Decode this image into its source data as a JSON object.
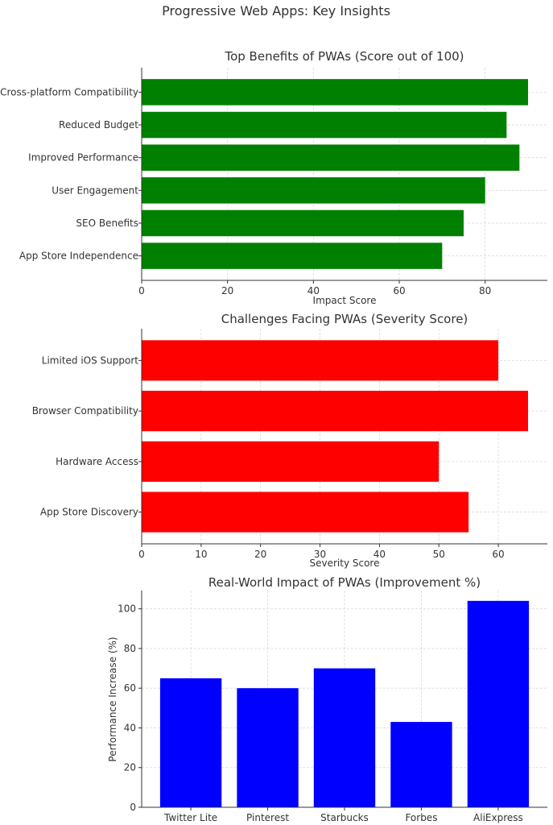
{
  "figure": {
    "title": "Progressive Web Apps: Key Insights"
  },
  "chart_data": [
    {
      "type": "bar",
      "orientation": "horizontal",
      "title": "Top Benefits of PWAs (Score out of 100)",
      "xlabel": "Impact Score",
      "ylabel": "",
      "categories": [
        "App Store Independence",
        "SEO Benefits",
        "User Engagement",
        "Improved Performance",
        "Reduced Budget",
        "Cross-platform Compatibility"
      ],
      "values": [
        70,
        75,
        80,
        88,
        85,
        90
      ],
      "xlim": [
        0,
        94.5
      ],
      "ticks": [
        0,
        20,
        40,
        60,
        80
      ],
      "color": "#008000",
      "grid": true
    },
    {
      "type": "bar",
      "orientation": "horizontal",
      "title": "Challenges Facing PWAs (Severity Score)",
      "xlabel": "Severity Score",
      "ylabel": "",
      "categories": [
        "App Store Discovery",
        "Hardware Access",
        "Browser Compatibility",
        "Limited iOS Support"
      ],
      "values": [
        55,
        50,
        65,
        60
      ],
      "xlim": [
        0,
        68.25
      ],
      "ticks": [
        0,
        10,
        20,
        30,
        40,
        50,
        60
      ],
      "color": "#ff0000",
      "grid": true
    },
    {
      "type": "bar",
      "orientation": "vertical",
      "title": "Real-World Impact of PWAs (Improvement %)",
      "xlabel": "",
      "ylabel": "Performance Increase (%)",
      "categories": [
        "Twitter Lite",
        "Pinterest",
        "Starbucks",
        "Forbes",
        "AliExpress"
      ],
      "values": [
        65,
        60,
        70,
        43,
        104
      ],
      "ylim": [
        0,
        109.2
      ],
      "ticks": [
        0,
        20,
        40,
        60,
        80,
        100
      ],
      "color": "#0000ff",
      "grid": true
    }
  ]
}
